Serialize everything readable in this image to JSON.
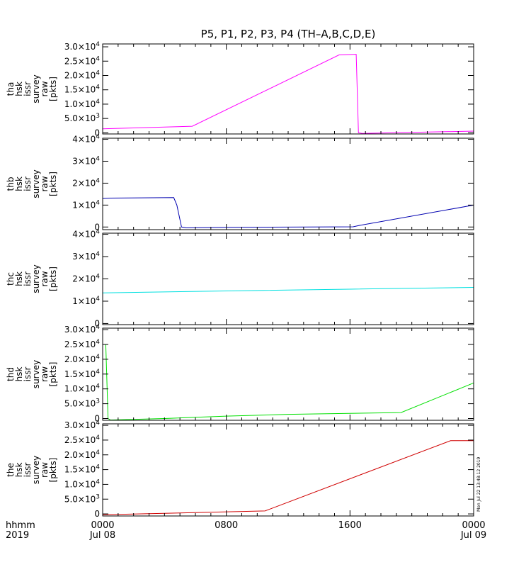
{
  "figure": {
    "title": "P5, P1, P2, P3, P4 (TH–A,B,C,D,E)",
    "x_axis_label": "hhmm",
    "x_axis_year": "2019",
    "x_ticks": [
      {
        "hour": 0,
        "label": "0000",
        "sublabel": "Jul 08"
      },
      {
        "hour": 8,
        "label": "0800",
        "sublabel": ""
      },
      {
        "hour": 16,
        "label": "1600",
        "sublabel": ""
      },
      {
        "hour": 24,
        "label": "0000",
        "sublabel": "Jul 09"
      }
    ],
    "timestamp": "Mon Jul 22 13:48:12 2019"
  },
  "chart_data": [
    {
      "type": "line",
      "probe": "tha",
      "ylabel_lines": [
        "tha",
        "hsk",
        "issr",
        "survey",
        "raw",
        "[pkts]"
      ],
      "color": "#ff00ff",
      "x_unit": "hours since 0000 UT Jul 08, 2019",
      "xlim": [
        0,
        24
      ],
      "ylim": [
        -400,
        31000
      ],
      "y_ticks": [
        {
          "value": 0,
          "mant": "0",
          "exp": ""
        },
        {
          "value": 5000,
          "mant": "5.0×10",
          "exp": "3"
        },
        {
          "value": 10000,
          "mant": "1.0×10",
          "exp": "4"
        },
        {
          "value": 15000,
          "mant": "1.5×10",
          "exp": "4"
        },
        {
          "value": 20000,
          "mant": "2.0×10",
          "exp": "4"
        },
        {
          "value": 25000,
          "mant": "2.5×10",
          "exp": "4"
        },
        {
          "value": 30000,
          "mant": "3.0×10",
          "exp": "4"
        }
      ],
      "points": [
        [
          0,
          1400
        ],
        [
          5.8,
          2300
        ],
        [
          15.3,
          27200
        ],
        [
          16.4,
          27400
        ],
        [
          16.55,
          0
        ],
        [
          16.8,
          -200
        ],
        [
          24,
          600
        ]
      ]
    },
    {
      "type": "line",
      "probe": "thb",
      "ylabel_lines": [
        "thb",
        "hsk",
        "issr",
        "survey",
        "raw",
        "[pkts]"
      ],
      "color": "#0000b0",
      "x_unit": "hours since 0000 UT Jul 08, 2019",
      "xlim": [
        0,
        24
      ],
      "ylim": [
        -1200,
        40500
      ],
      "y_ticks": [
        {
          "value": 0,
          "mant": "0",
          "exp": ""
        },
        {
          "value": 10000,
          "mant": "1×10",
          "exp": "4"
        },
        {
          "value": 20000,
          "mant": "2×10",
          "exp": "4"
        },
        {
          "value": 30000,
          "mant": "3×10",
          "exp": "4"
        },
        {
          "value": 40000,
          "mant": "4×10",
          "exp": "4"
        }
      ],
      "points": [
        [
          0,
          13000
        ],
        [
          0.5,
          13200
        ],
        [
          4.6,
          13400
        ],
        [
          4.8,
          10000
        ],
        [
          5.1,
          0
        ],
        [
          5.4,
          -400
        ],
        [
          8.2,
          -150
        ],
        [
          16.2,
          100
        ],
        [
          16.6,
          700
        ],
        [
          24,
          10000
        ]
      ]
    },
    {
      "type": "line",
      "probe": "thc",
      "ylabel_lines": [
        "thc",
        "hsk",
        "issr",
        "survey",
        "raw",
        "[pkts]"
      ],
      "color": "#00e0e0",
      "x_unit": "hours since 0000 UT Jul 08, 2019",
      "xlim": [
        0,
        24
      ],
      "ylim": [
        -500,
        40500
      ],
      "y_ticks": [
        {
          "value": 0,
          "mant": "0",
          "exp": ""
        },
        {
          "value": 10000,
          "mant": "1×10",
          "exp": "4"
        },
        {
          "value": 20000,
          "mant": "2×10",
          "exp": "4"
        },
        {
          "value": 30000,
          "mant": "3×10",
          "exp": "4"
        },
        {
          "value": 40000,
          "mant": "4×10",
          "exp": "4"
        }
      ],
      "points": [
        [
          0,
          13700
        ],
        [
          8,
          14600
        ],
        [
          16,
          15400
        ],
        [
          24,
          16200
        ]
      ]
    },
    {
      "type": "line",
      "probe": "thd",
      "ylabel_lines": [
        "thd",
        "hsk",
        "issr",
        "survey",
        "raw",
        "[pkts]"
      ],
      "color": "#00e000",
      "x_unit": "hours since 0000 UT Jul 08, 2019",
      "xlim": [
        0,
        24
      ],
      "ylim": [
        -600,
        30500
      ],
      "y_ticks": [
        {
          "value": 0,
          "mant": "0",
          "exp": ""
        },
        {
          "value": 5000,
          "mant": "5.0×10",
          "exp": "3"
        },
        {
          "value": 10000,
          "mant": "1.0×10",
          "exp": "4"
        },
        {
          "value": 15000,
          "mant": "1.5×10",
          "exp": "4"
        },
        {
          "value": 20000,
          "mant": "2.0×10",
          "exp": "4"
        },
        {
          "value": 25000,
          "mant": "2.5×10",
          "exp": "4"
        },
        {
          "value": 30000,
          "mant": "3.0×10",
          "exp": "4"
        }
      ],
      "points": [
        [
          0.2,
          25000
        ],
        [
          0.35,
          0
        ],
        [
          0.5,
          -500
        ],
        [
          4,
          0
        ],
        [
          8,
          800
        ],
        [
          12,
          1400
        ],
        [
          19.3,
          2000
        ],
        [
          24,
          12000
        ]
      ]
    },
    {
      "type": "line",
      "probe": "the",
      "ylabel_lines": [
        "the",
        "hsk",
        "issr",
        "survey",
        "raw",
        "[pkts]"
      ],
      "color": "#d00000",
      "x_unit": "hours since 0000 UT Jul 08, 2019",
      "xlim": [
        0,
        24
      ],
      "ylim": [
        -700,
        30500
      ],
      "y_ticks": [
        {
          "value": 0,
          "mant": "0",
          "exp": ""
        },
        {
          "value": 5000,
          "mant": "5.0×10",
          "exp": "3"
        },
        {
          "value": 10000,
          "mant": "1.0×10",
          "exp": "4"
        },
        {
          "value": 15000,
          "mant": "1.5×10",
          "exp": "4"
        },
        {
          "value": 20000,
          "mant": "2.0×10",
          "exp": "4"
        },
        {
          "value": 25000,
          "mant": "2.5×10",
          "exp": "4"
        },
        {
          "value": 30000,
          "mant": "3.0×10",
          "exp": "4"
        }
      ],
      "points": [
        [
          0,
          -300
        ],
        [
          5,
          300
        ],
        [
          10.5,
          1000
        ],
        [
          22.5,
          24800
        ],
        [
          23.3,
          24800
        ],
        [
          24,
          24800
        ]
      ]
    }
  ]
}
